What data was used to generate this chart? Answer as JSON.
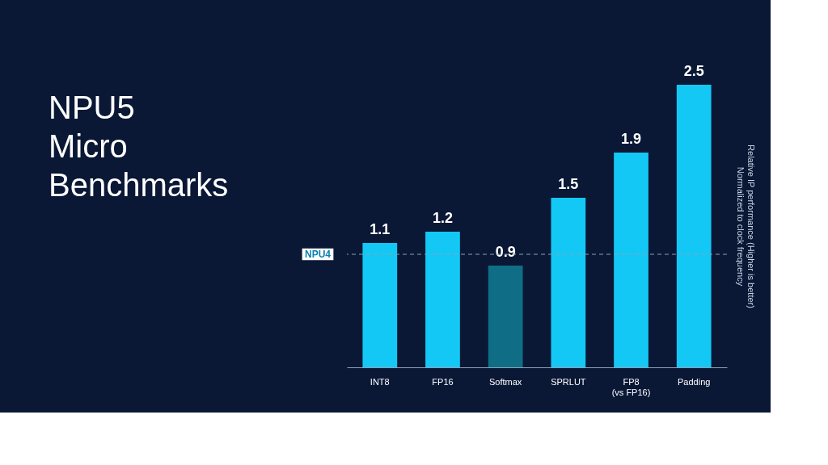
{
  "chart_data": {
    "type": "bar",
    "title": "NPU5\nMicro\nBenchmarks",
    "ylabel": "Relative IP performance (Higher is better)\nNormalized to clock frequency",
    "categories": [
      "INT8",
      "FP16",
      "Softmax",
      "SPRLUT",
      "FP8\n(vs FP16)",
      "Padding"
    ],
    "values": [
      1.1,
      1.2,
      0.9,
      1.5,
      1.9,
      2.5
    ],
    "colors": [
      "#14c8f5",
      "#14c8f5",
      "#0f6e85",
      "#14c8f5",
      "#14c8f5",
      "#14c8f5"
    ],
    "data_labels": true,
    "tick_labels": "x",
    "ref_lines": [
      {
        "axis": "y",
        "value": 1.0,
        "label": "NPU4",
        "color": "#8ca0b8",
        "line_style": "dashed"
      }
    ]
  }
}
